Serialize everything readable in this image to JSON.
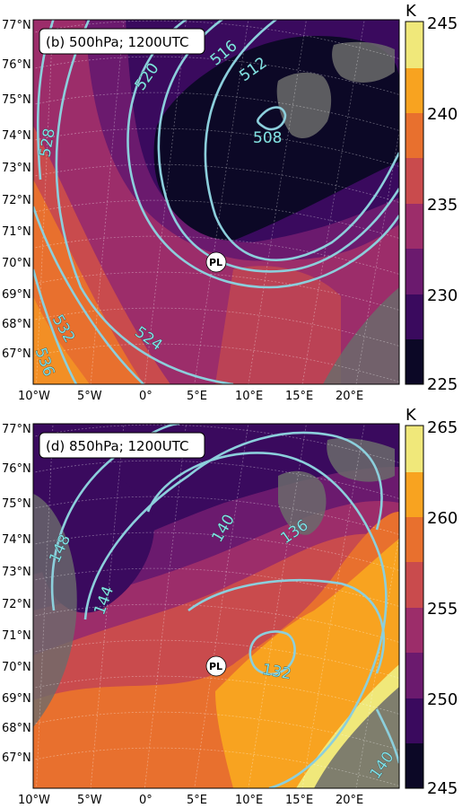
{
  "panels": [
    {
      "title": "(b) 500hPa; 1200UTC",
      "colorbar_unit": "K",
      "colorbar_ticks": [
        "245",
        "240",
        "235",
        "230",
        "225"
      ],
      "contour_labels": [
        "520",
        "516",
        "512",
        "508",
        "528",
        "532",
        "536",
        "524"
      ],
      "marker_label": "PL",
      "lat_labels": [
        "77°N",
        "76°N",
        "75°N",
        "74°N",
        "73°N",
        "72°N",
        "71°N",
        "70°N",
        "69°N",
        "68°N",
        "67°N"
      ],
      "lon_labels": [
        "10°W",
        "5°W",
        "0°",
        "5°E",
        "10°E",
        "15°E",
        "20°E"
      ],
      "colors": [
        "#0c0826",
        "#3a0a5e",
        "#6b1a6e",
        "#9c2d6a",
        "#c94b4d",
        "#e8702e",
        "#f8a320",
        "#f0e87a"
      ]
    },
    {
      "title": "(d) 850hPa; 1200UTC",
      "colorbar_unit": "K",
      "colorbar_ticks": [
        "265",
        "260",
        "255",
        "250",
        "245"
      ],
      "contour_labels": [
        "148",
        "144",
        "140",
        "136",
        "132",
        "140"
      ],
      "marker_label": "PL",
      "lat_labels": [
        "77°N",
        "76°N",
        "75°N",
        "74°N",
        "73°N",
        "72°N",
        "71°N",
        "70°N",
        "69°N",
        "68°N",
        "67°N"
      ],
      "lon_labels": [
        "10°W",
        "5°W",
        "0°",
        "5°E",
        "10°E",
        "15°E",
        "20°E"
      ],
      "colors": [
        "#0c0826",
        "#3a0a5e",
        "#6b1a6e",
        "#9c2d6a",
        "#c94b4d",
        "#e8702e",
        "#f8a320",
        "#f0e87a"
      ]
    }
  ]
}
